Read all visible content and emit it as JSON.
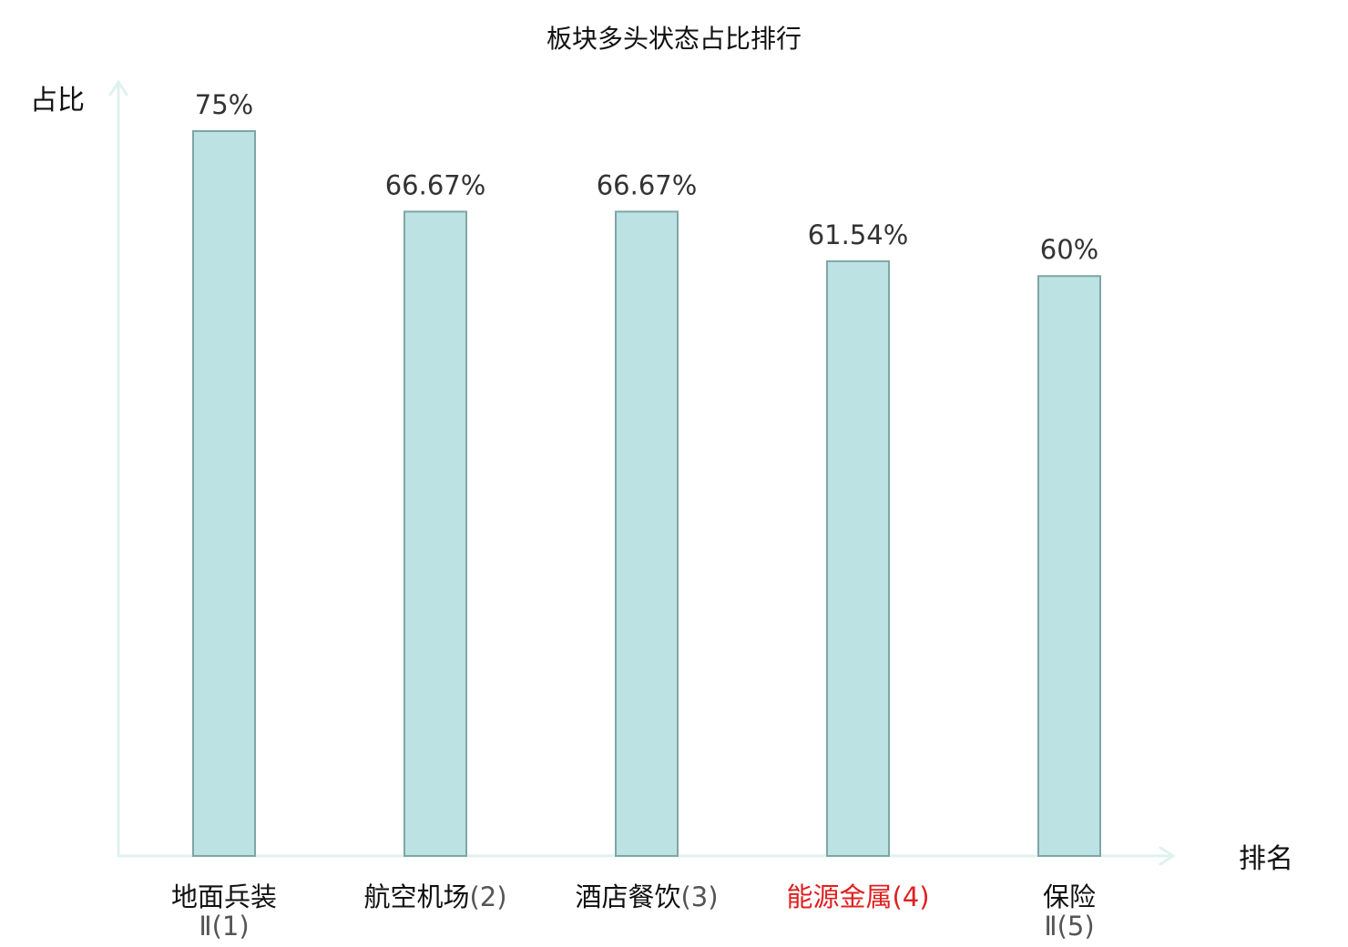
{
  "chart_data": {
    "type": "bar",
    "title": "板块多头状态占比排行",
    "ylabel": "占比",
    "xlabel": "排名",
    "ylim": [
      0,
      75
    ],
    "grid": false,
    "categories": [
      {
        "name": "地面兵装",
        "suffix": "Ⅱ(1)",
        "highlight": false
      },
      {
        "name": "航空机场",
        "suffix": "(2)",
        "highlight": false
      },
      {
        "name": "酒店餐饮",
        "suffix": "(3)",
        "highlight": false
      },
      {
        "name": "能源金属",
        "suffix": "(4)",
        "highlight": true
      },
      {
        "name": "保险",
        "suffix": "Ⅱ(5)",
        "highlight": false
      }
    ],
    "values": [
      75,
      66.67,
      66.67,
      61.54,
      60
    ],
    "value_labels": [
      "75%",
      "66.67%",
      "66.67%",
      "61.54%",
      "60%"
    ]
  },
  "colors": {
    "bar_fill": "#bce2e3",
    "bar_stroke": "#7fa5a6",
    "axis": "#dff2ef",
    "highlight": "#e02020",
    "suffix": "#555555",
    "text": "#111111"
  }
}
